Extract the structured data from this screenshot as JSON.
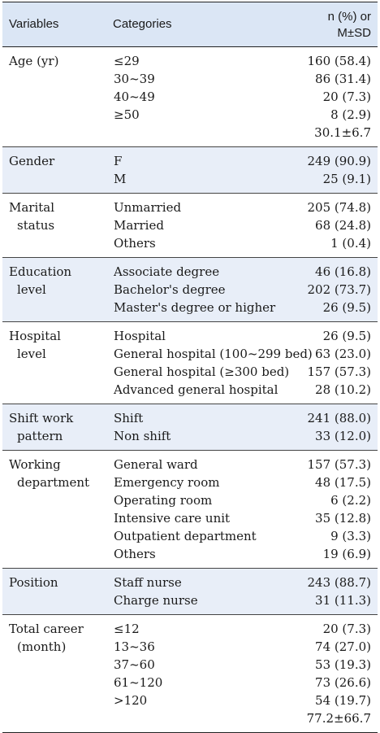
{
  "header": {
    "variables": "Variables",
    "categories": "Categories",
    "value_line1": "n (%) or",
    "value_line2": "M±SD"
  },
  "groups": [
    {
      "var_line1": "Age (yr)",
      "var_line2": "",
      "rows": [
        {
          "cat": "≤29",
          "val": "160 (58.4)"
        },
        {
          "cat": "30~39",
          "val": "86 (31.4)"
        },
        {
          "cat": "40~49",
          "val": "20 (7.3)"
        },
        {
          "cat": "≥50",
          "val": "8 (2.9)"
        },
        {
          "cat": "",
          "val": "30.1±6.7"
        }
      ]
    },
    {
      "var_line1": "Gender",
      "var_line2": "",
      "rows": [
        {
          "cat": "F",
          "val": "249 (90.9)"
        },
        {
          "cat": "M",
          "val": "25 (9.1)"
        }
      ]
    },
    {
      "var_line1": "Marital",
      "var_line2": "status",
      "rows": [
        {
          "cat": "Unmarried",
          "val": "205 (74.8)"
        },
        {
          "cat": "Married",
          "val": "68 (24.8)"
        },
        {
          "cat": "Others",
          "val": "1 (0.4)"
        }
      ]
    },
    {
      "var_line1": "Education",
      "var_line2": "level",
      "rows": [
        {
          "cat": "Associate degree",
          "val": "46 (16.8)"
        },
        {
          "cat": "Bachelor's degree",
          "val": "202 (73.7)"
        },
        {
          "cat": "Master's degree or higher",
          "val": "26 (9.5)"
        }
      ]
    },
    {
      "var_line1": "Hospital",
      "var_line2": "level",
      "rows": [
        {
          "cat": "Hospital",
          "val": "26 (9.5)"
        },
        {
          "cat": "General hospital (100~299 bed)",
          "val": "63 (23.0)"
        },
        {
          "cat": "General hospital (≥300 bed)",
          "val": "157 (57.3)"
        },
        {
          "cat": "Advanced general hospital",
          "val": "28 (10.2)"
        }
      ]
    },
    {
      "var_line1": "Shift work",
      "var_line2": "pattern",
      "rows": [
        {
          "cat": "Shift",
          "val": "241 (88.0)"
        },
        {
          "cat": "Non shift",
          "val": "33 (12.0)"
        }
      ]
    },
    {
      "var_line1": "Working",
      "var_line2": "department",
      "rows": [
        {
          "cat": "General ward",
          "val": "157 (57.3)"
        },
        {
          "cat": "Emergency room",
          "val": "48 (17.5)"
        },
        {
          "cat": "Operating room",
          "val": "6 (2.2)"
        },
        {
          "cat": "Intensive care unit",
          "val": "35 (12.8)"
        },
        {
          "cat": "Outpatient department",
          "val": "9 (3.3)"
        },
        {
          "cat": "Others",
          "val": "19 (6.9)"
        }
      ]
    },
    {
      "var_line1": "Position",
      "var_line2": "",
      "rows": [
        {
          "cat": "Staff nurse",
          "val": "243 (88.7)"
        },
        {
          "cat": "Charge nurse",
          "val": "31 (11.3)"
        }
      ]
    },
    {
      "var_line1": "Total career",
      "var_line2": "(month)",
      "rows": [
        {
          "cat": "≤12",
          "val": "20 (7.3)"
        },
        {
          "cat": "13~36",
          "val": "74 (27.0)"
        },
        {
          "cat": "37~60",
          "val": "53 (19.3)"
        },
        {
          "cat": "61~120",
          "val": "73 (26.6)"
        },
        {
          "cat": ">120",
          "val": "54 (19.7)"
        },
        {
          "cat": "",
          "val": "77.2±66.7"
        }
      ]
    }
  ]
}
